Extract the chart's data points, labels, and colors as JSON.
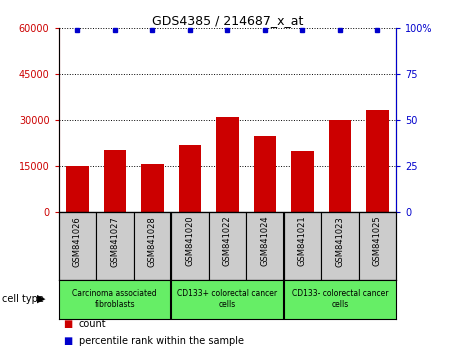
{
  "title": "GDS4385 / 214687_x_at",
  "samples": [
    "GSM841026",
    "GSM841027",
    "GSM841028",
    "GSM841020",
    "GSM841022",
    "GSM841024",
    "GSM841021",
    "GSM841023",
    "GSM841025"
  ],
  "counts": [
    15200,
    20500,
    15800,
    22000,
    31000,
    25000,
    20000,
    30000,
    33500
  ],
  "percentile_ranks": [
    99,
    99,
    99,
    99,
    99,
    99,
    99,
    99,
    99
  ],
  "cell_types": [
    {
      "label": "Carcinoma associated\nfibroblasts",
      "start": 0,
      "end": 3
    },
    {
      "label": "CD133+ colorectal cancer\ncells",
      "start": 3,
      "end": 6
    },
    {
      "label": "CD133- colorectal cancer\ncells",
      "start": 6,
      "end": 9
    }
  ],
  "ylim_left": [
    0,
    60000
  ],
  "ylim_right": [
    0,
    100
  ],
  "yticks_left": [
    0,
    15000,
    30000,
    45000,
    60000
  ],
  "ytick_labels_left": [
    "0",
    "15000",
    "30000",
    "45000",
    "60000"
  ],
  "yticks_right": [
    0,
    25,
    50,
    75,
    100
  ],
  "ytick_labels_right": [
    "0",
    "25",
    "50",
    "75",
    "100%"
  ],
  "bar_color": "#cc0000",
  "dot_color": "#0000cc",
  "grid_color": "#000000",
  "bg_color": "#ffffff",
  "cell_type_bg": "#66ee66",
  "sample_bg": "#cccccc",
  "legend_count_color": "#cc0000",
  "legend_pct_color": "#0000cc"
}
